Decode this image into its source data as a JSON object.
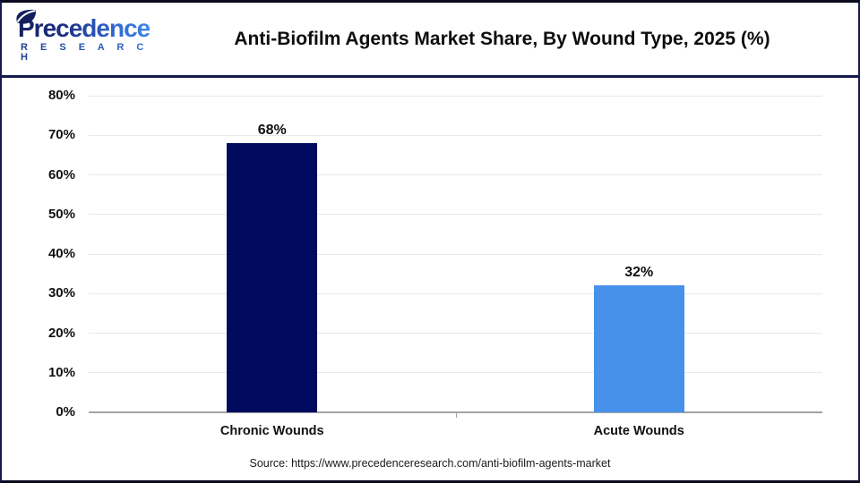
{
  "header": {
    "logo": {
      "brand_name": "Precedence",
      "brand_sub": "R E S E A R C H"
    }
  },
  "chart_data": {
    "type": "bar",
    "title": "Anti-Biofilm Agents Market Share, By Wound Type, 2025 (%)",
    "categories": [
      "Chronic Wounds",
      "Acute Wounds"
    ],
    "values": [
      68,
      32
    ],
    "value_labels": [
      "68%",
      "32%"
    ],
    "bar_colors": [
      "#000A5E",
      "#4791EB"
    ],
    "xlabel": "",
    "ylabel": "",
    "ylim": [
      0,
      80
    ],
    "ytick_step": 10,
    "ytick_labels": [
      "0%",
      "10%",
      "20%",
      "30%",
      "40%",
      "50%",
      "60%",
      "70%",
      "80%"
    ],
    "grid": true,
    "legend": false
  },
  "source": {
    "text": "Source: https://www.precedenceresearch.com/anti-biofilm-agents-market"
  },
  "colors": {
    "frame_border": "#161A4E",
    "header_separator": "#141B4D",
    "gridline": "#E9E9E9",
    "axis_line": "#A3A3A3",
    "bar_chronic": "#000A5E",
    "bar_acute": "#4791EB",
    "logo_navy": "#16205F",
    "logo_blue": "#3F86E8"
  }
}
